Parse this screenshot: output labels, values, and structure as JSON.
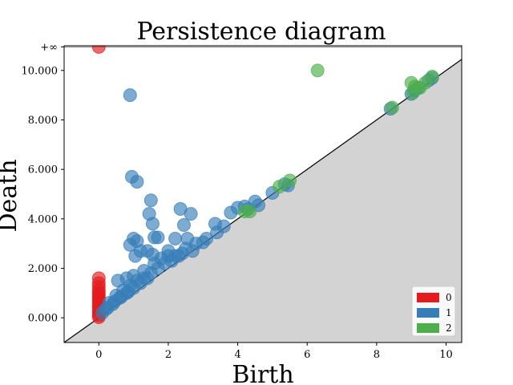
{
  "chart_data": {
    "type": "scatter",
    "title": "Persistence diagram",
    "xlabel": "Birth",
    "ylabel": "Death",
    "xlim": [
      -1.0,
      10.45
    ],
    "ylim": [
      -1.0,
      11.0
    ],
    "inf_value": 10.95,
    "inf_label": "+∞",
    "x_ticks": [
      0,
      2,
      4,
      6,
      8,
      10
    ],
    "x_tick_labels": [
      "0",
      "2",
      "4",
      "6",
      "8",
      "10"
    ],
    "y_ticks": [
      0,
      2,
      4,
      6,
      8,
      10
    ],
    "y_tick_labels": [
      "0.000",
      "2.000",
      "4.000",
      "6.000",
      "8.000",
      "10.000"
    ],
    "legend": {
      "position": "bottom-right",
      "entries": [
        {
          "label": "0",
          "color": "#e41a1c"
        },
        {
          "label": "1",
          "color": "#377eb8"
        },
        {
          "label": "2",
          "color": "#4daf4a"
        }
      ]
    },
    "colors": {
      "dim0": "#e41a1c",
      "dim1": "#377eb8",
      "dim2": "#4daf4a",
      "diagonal_fill": "#d3d3d3",
      "inf_line": "#808080"
    },
    "series": [
      {
        "name": "0",
        "points": [
          [
            0,
            10.95
          ],
          [
            0,
            1.6
          ],
          [
            0,
            1.4
          ],
          [
            0,
            1.25
          ],
          [
            0,
            1.1
          ],
          [
            0,
            1.0
          ],
          [
            0,
            0.9
          ],
          [
            0,
            0.8
          ],
          [
            0,
            0.7
          ],
          [
            0,
            0.6
          ],
          [
            0,
            0.5
          ],
          [
            0,
            0.4
          ],
          [
            0,
            0.3
          ],
          [
            0,
            0.2
          ],
          [
            0,
            0.1
          ],
          [
            0,
            0.02
          ]
        ]
      },
      {
        "name": "1",
        "points": [
          [
            0.9,
            9.0
          ],
          [
            0.95,
            5.7
          ],
          [
            1.1,
            5.5
          ],
          [
            1.5,
            4.75
          ],
          [
            1.45,
            4.2
          ],
          [
            1.55,
            3.8
          ],
          [
            1.6,
            3.25
          ],
          [
            1.7,
            3.25
          ],
          [
            2.35,
            4.4
          ],
          [
            2.65,
            4.2
          ],
          [
            2.45,
            3.75
          ],
          [
            2.2,
            3.2
          ],
          [
            2.55,
            3.2
          ],
          [
            1.0,
            3.2
          ],
          [
            1.1,
            3.1
          ],
          [
            0.9,
            2.95
          ],
          [
            1.2,
            2.7
          ],
          [
            1.4,
            2.7
          ],
          [
            1.55,
            2.55
          ],
          [
            1.05,
            2.5
          ],
          [
            2.0,
            2.7
          ],
          [
            2.7,
            2.7
          ],
          [
            3.0,
            3.05
          ],
          [
            3.4,
            3.45
          ],
          [
            3.35,
            3.8
          ],
          [
            3.8,
            4.25
          ],
          [
            4.0,
            4.45
          ],
          [
            4.2,
            4.5
          ],
          [
            4.3,
            4.4
          ],
          [
            4.5,
            4.7
          ],
          [
            4.6,
            4.55
          ],
          [
            5.0,
            5.05
          ],
          [
            5.35,
            5.4
          ],
          [
            5.45,
            5.35
          ],
          [
            8.4,
            8.45
          ],
          [
            9.0,
            9.05
          ],
          [
            9.1,
            9.2
          ],
          [
            9.2,
            9.3
          ],
          [
            0.55,
            1.5
          ],
          [
            0.8,
            1.6
          ],
          [
            1.0,
            1.7
          ],
          [
            1.3,
            1.9
          ],
          [
            1.6,
            2.2
          ],
          [
            1.8,
            2.4
          ],
          [
            2.0,
            2.5
          ],
          [
            2.2,
            2.5
          ],
          [
            2.4,
            2.6
          ],
          [
            0.3,
            0.6
          ],
          [
            0.5,
            0.9
          ],
          [
            0.7,
            1.1
          ],
          [
            0.9,
            1.3
          ],
          [
            1.1,
            1.5
          ],
          [
            1.3,
            1.6
          ],
          [
            1.5,
            1.8
          ],
          [
            1.7,
            2.0
          ],
          [
            1.9,
            2.2
          ],
          [
            2.1,
            2.3
          ],
          [
            2.3,
            2.5
          ],
          [
            0.2,
            0.35
          ],
          [
            0.4,
            0.55
          ],
          [
            0.6,
            0.8
          ],
          [
            0.8,
            1.0
          ],
          [
            1.0,
            1.2
          ],
          [
            1.2,
            1.4
          ],
          [
            1.4,
            1.6
          ],
          [
            0.1,
            0.2
          ],
          [
            0.25,
            0.4
          ],
          [
            0.45,
            0.65
          ],
          [
            0.65,
            0.85
          ],
          [
            0.85,
            1.05
          ],
          [
            2.5,
            2.8
          ],
          [
            2.8,
            3.0
          ],
          [
            3.1,
            3.2
          ],
          [
            3.6,
            3.7
          ],
          [
            9.6,
            9.7
          ],
          [
            9.5,
            9.6
          ]
        ]
      },
      {
        "name": "2",
        "points": [
          [
            6.3,
            10.0
          ],
          [
            4.2,
            4.3
          ],
          [
            4.35,
            4.3
          ],
          [
            5.2,
            5.3
          ],
          [
            5.5,
            5.55
          ],
          [
            9.0,
            9.5
          ],
          [
            9.1,
            9.35
          ],
          [
            9.25,
            9.3
          ],
          [
            9.4,
            9.5
          ],
          [
            9.6,
            9.75
          ],
          [
            9.05,
            9.1
          ],
          [
            8.45,
            8.5
          ]
        ]
      }
    ]
  }
}
